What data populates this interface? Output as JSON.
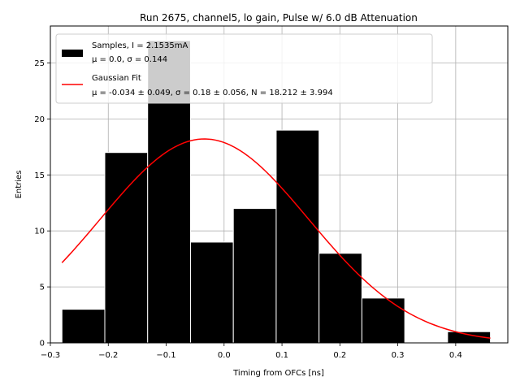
{
  "chart_data": {
    "type": "bar",
    "title": "Run 2675, channel5, lo gain, Pulse w/ 6.0 dB Attenuation",
    "xlabel": "Timing from OFCs [ns]",
    "ylabel": "Entries",
    "xlim": [
      -0.3,
      0.49
    ],
    "ylim": [
      0,
      28.3
    ],
    "xticks": [
      -0.3,
      -0.2,
      -0.1,
      0.0,
      0.1,
      0.2,
      0.3,
      0.4
    ],
    "xtick_labels": [
      "−0.3",
      "−0.2",
      "−0.1",
      "0.0",
      "0.1",
      "0.2",
      "0.3",
      "0.4"
    ],
    "yticks": [
      0,
      5,
      10,
      15,
      20,
      25
    ],
    "ytick_labels": [
      "0",
      "5",
      "10",
      "15",
      "20",
      "25"
    ],
    "grid": true,
    "legend_position": "top-left",
    "histogram": {
      "name": "Samples, I = 2.1535mA",
      "name_line2": "μ = 0.0, σ = 0.144",
      "color": "#000000",
      "edge_color": "#ffffff",
      "bins": [
        {
          "left": -0.28,
          "right": -0.206,
          "count": 3
        },
        {
          "left": -0.206,
          "right": -0.132,
          "count": 17
        },
        {
          "left": -0.132,
          "right": -0.058,
          "count": 27
        },
        {
          "left": -0.058,
          "right": 0.016,
          "count": 9
        },
        {
          "left": 0.016,
          "right": 0.09,
          "count": 12
        },
        {
          "left": 0.09,
          "right": 0.164,
          "count": 19
        },
        {
          "left": 0.164,
          "right": 0.238,
          "count": 8
        },
        {
          "left": 0.238,
          "right": 0.312,
          "count": 4
        },
        {
          "left": 0.312,
          "right": 0.386,
          "count": 0
        },
        {
          "left": 0.386,
          "right": 0.46,
          "count": 1
        }
      ]
    },
    "fit": {
      "name": "Gaussian Fit",
      "name_line2": "μ = -0.034 ± 0.049, σ = 0.18 ± 0.056, N = 18.212 ± 3.994",
      "color": "#ff0000",
      "mu": -0.034,
      "sigma": 0.18,
      "N": 18.212,
      "x_range": [
        -0.28,
        0.46
      ]
    }
  }
}
